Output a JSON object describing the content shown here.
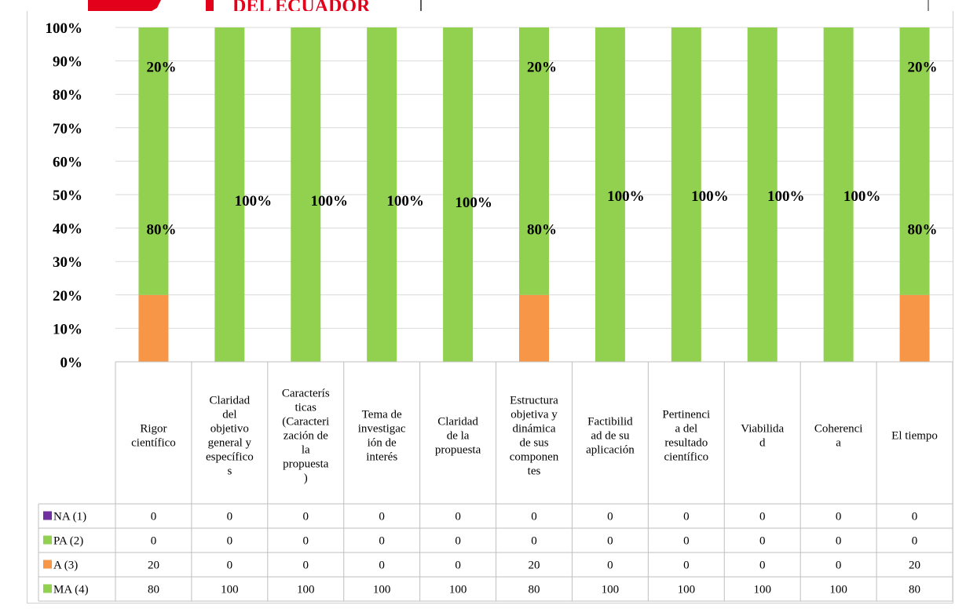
{
  "header": {
    "logo_text": "DEL ECUADOR"
  },
  "chart_data": {
    "type": "bar",
    "stacked": true,
    "percent": true,
    "categories": [
      [
        "Rigor",
        "científico"
      ],
      [
        "Claridad",
        "del",
        "objetivo",
        "general y",
        "específico",
        "s"
      ],
      [
        "Caracterís",
        "ticas",
        "(Caracteri",
        "zación de",
        "la",
        "propuesta",
        ")"
      ],
      [
        "Tema de",
        "investigac",
        "ión de",
        "interés"
      ],
      [
        "Claridad",
        "de la",
        "propuesta"
      ],
      [
        "Estructura",
        "objetiva y",
        "dinámica",
        "de sus",
        "componen",
        "tes"
      ],
      [
        "Factibilid",
        "ad de su",
        "aplicación"
      ],
      [
        "Pertinenci",
        "a del",
        "resultado",
        "científico"
      ],
      [
        "Viabilida",
        "d"
      ],
      [
        "Coherenci",
        "a"
      ],
      [
        "El tiempo"
      ]
    ],
    "series": [
      {
        "name": "NA (1)",
        "color": "#7030a0",
        "values": [
          0,
          0,
          0,
          0,
          0,
          0,
          0,
          0,
          0,
          0,
          0
        ]
      },
      {
        "name": "PA (2)",
        "color": "#92d050",
        "values": [
          0,
          0,
          0,
          0,
          0,
          0,
          0,
          0,
          0,
          0,
          0
        ]
      },
      {
        "name": "A (3)",
        "color": "#f79646",
        "values": [
          20,
          0,
          0,
          0,
          0,
          20,
          0,
          0,
          0,
          0,
          20
        ]
      },
      {
        "name": "MA (4)",
        "color": "#92d050",
        "values": [
          80,
          100,
          100,
          100,
          100,
          80,
          100,
          100,
          100,
          100,
          80
        ]
      }
    ],
    "bar_labels": {
      "MA (4)": [
        "80%",
        "100%",
        "100%",
        "100%",
        "100%",
        "80%",
        "100%",
        "100%",
        "100%",
        "100%",
        "80%"
      ],
      "A (3)": [
        "20%",
        "",
        "",
        "",
        "",
        "20%",
        "",
        "",
        "",
        "",
        "20%"
      ]
    },
    "ytick_labels": [
      "0%",
      "10%",
      "20%",
      "30%",
      "40%",
      "50%",
      "60%",
      "70%",
      "80%",
      "90%",
      "100%"
    ],
    "ylim": [
      0,
      100
    ],
    "grid": true,
    "legend": "data-table"
  }
}
